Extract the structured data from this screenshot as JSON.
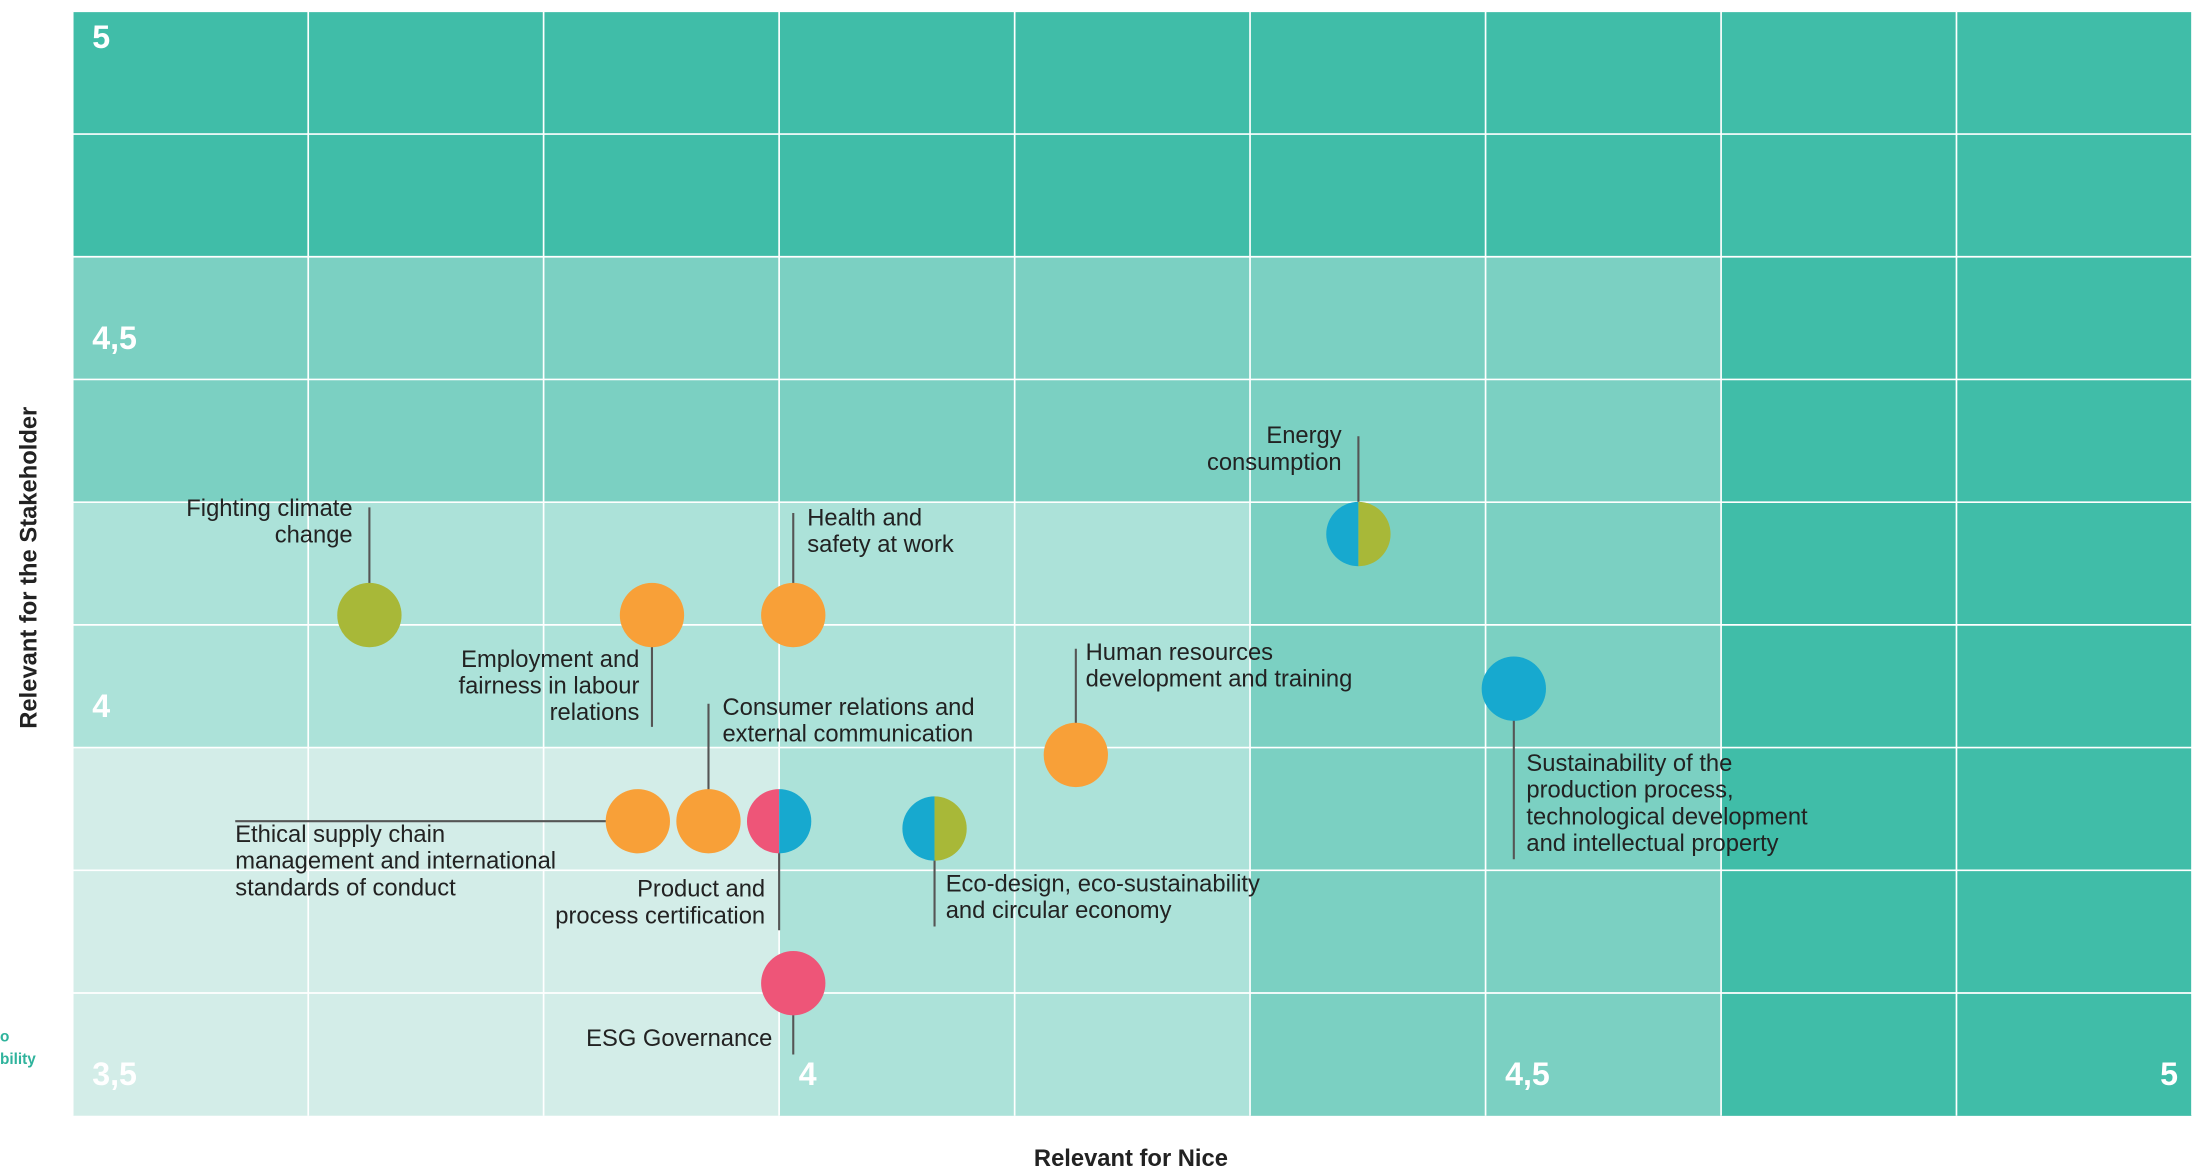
{
  "chart_data": {
    "type": "scatter",
    "xlabel": "Relevant for Nice",
    "ylabel": "Relevant for the Stakeholder",
    "xlim": [
      3.5,
      5
    ],
    "ylim": [
      3.5,
      5
    ],
    "xticks": [
      {
        "value": 3.5,
        "label": "3,5"
      },
      4,
      {
        "value": 4.5,
        "label": "4,5"
      },
      5
    ],
    "yticks": [
      4,
      {
        "value": 4.5,
        "label": "4,5"
      },
      5
    ],
    "x_minor_grid": [
      3.6667,
      3.8333,
      4.1667,
      4.3333,
      4.6667,
      4.8333
    ],
    "y_minor_grid": [
      3.6667,
      3.8333,
      4.1667,
      4.3333,
      4.6667,
      4.8333
    ],
    "grid": true,
    "background": "#d3ede8",
    "zones": [
      {
        "min": 4.0,
        "color": "#ace2d9"
      },
      {
        "min": 4.3333,
        "color": "#7bd0c2"
      },
      {
        "min": 4.6667,
        "color": "#40bda8"
      }
    ],
    "points": [
      {
        "label": [
          "Fighting climate",
          "change"
        ],
        "x": 3.71,
        "y": 4.18,
        "colors": [
          "#a8b838"
        ]
      },
      {
        "label": [
          "Employment and",
          "fairness in labour",
          "relations"
        ],
        "x": 3.91,
        "y": 4.18,
        "colors": [
          "#f8a038"
        ]
      },
      {
        "label": [
          "Health and",
          "safety at work"
        ],
        "x": 4.01,
        "y": 4.18,
        "colors": [
          "#f8a038"
        ]
      },
      {
        "label": [
          "Energy",
          "consumption"
        ],
        "x": 4.41,
        "y": 4.29,
        "colors": [
          "#17a9cf",
          "#a8b838"
        ]
      },
      {
        "label": [
          "Human resources",
          "development and training"
        ],
        "x": 4.21,
        "y": 3.99,
        "colors": [
          "#f8a038"
        ]
      },
      {
        "label": [
          "Sustainability of the",
          "production process,",
          "technological development",
          "and intellectual property"
        ],
        "x": 4.52,
        "y": 4.08,
        "colors": [
          "#17a9cf"
        ]
      },
      {
        "label": [
          "Ethical supply chain",
          "management and international",
          "standards of conduct"
        ],
        "x": 3.9,
        "y": 3.9,
        "colors": [
          "#f8a038"
        ]
      },
      {
        "label": [
          "Consumer relations and",
          "external communication"
        ],
        "x": 3.95,
        "y": 3.9,
        "colors": [
          "#f8a038"
        ]
      },
      {
        "label": [
          "Product and",
          "process certification"
        ],
        "x": 4.0,
        "y": 3.9,
        "colors": [
          "#ee5578",
          "#17a9cf"
        ]
      },
      {
        "label": [
          "Eco-design, eco-sustainability",
          "and circular economy"
        ],
        "x": 4.11,
        "y": 3.89,
        "colors": [
          "#17a9cf",
          "#a8b838"
        ]
      },
      {
        "label": [
          "ESG Governance"
        ],
        "x": 4.01,
        "y": 3.68,
        "colors": [
          "#ee5578"
        ]
      }
    ],
    "cropped_text": [
      "o",
      "bility"
    ]
  }
}
